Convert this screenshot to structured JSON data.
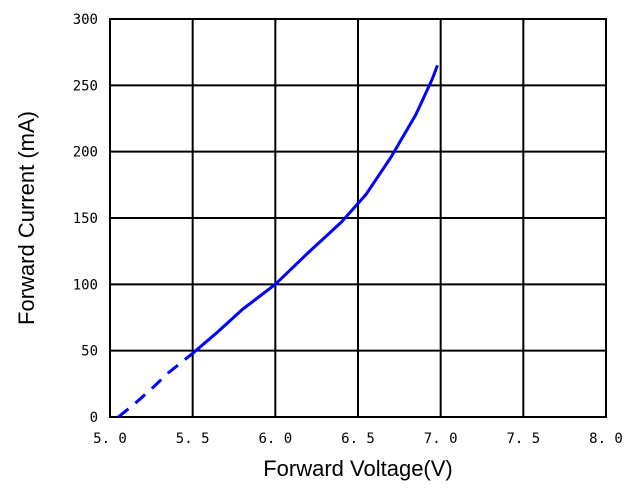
{
  "chart_data": {
    "type": "line",
    "title": "",
    "xlabel": "Forward Voltage(V)",
    "ylabel": "Forward Current (mA)",
    "xlim": [
      5.0,
      8.0
    ],
    "ylim": [
      0,
      300
    ],
    "x_ticks": [
      5.0,
      5.5,
      6.0,
      6.5,
      7.0,
      7.5,
      8.0
    ],
    "x_tick_labels": [
      "5. 0",
      "5. 5",
      "6. 0",
      "6. 5",
      "7. 0",
      "7. 5",
      "8. 0"
    ],
    "y_ticks": [
      0,
      50,
      100,
      150,
      200,
      250,
      300
    ],
    "y_tick_labels": [
      "0",
      "50",
      "100",
      "150",
      "200",
      "250",
      "300"
    ],
    "grid": true,
    "line_color": "#0000ff",
    "series": [
      {
        "style": "dashed",
        "x": [
          5.05,
          5.15,
          5.25,
          5.35,
          5.5
        ],
        "y": [
          0,
          10,
          21,
          33,
          48
        ]
      },
      {
        "style": "solid",
        "x": [
          5.5,
          5.65,
          5.8,
          6.0,
          6.2,
          6.4,
          6.55,
          6.7,
          6.85,
          6.95,
          6.98
        ],
        "y": [
          48,
          64,
          81,
          100,
          124,
          147,
          168,
          196,
          228,
          255,
          265
        ]
      }
    ]
  }
}
